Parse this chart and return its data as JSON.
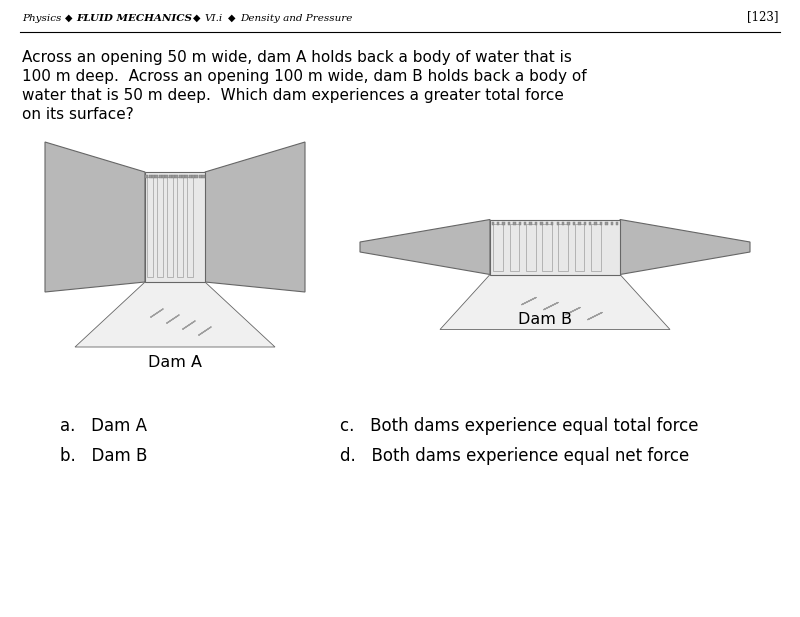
{
  "bg_color": "#ffffff",
  "header_italic": "Physics",
  "header_bullet1": "◆",
  "header_mechanics": "FLUID MECHANICS",
  "header_bullet2": "◆",
  "header_vi": "VI.i",
  "header_bullet3": "◆",
  "header_density": "Density and Pressure",
  "page_number": "[123]",
  "question_lines": [
    "Across an opening 50 m wide, dam A holds back a body of water that is",
    "100 m deep.  Across an opening 100 m wide, dam B holds back a body of",
    "water that is 50 m deep.  Which dam experiences a greater total force",
    "on its surface?"
  ],
  "dam_a_label": "Dam A",
  "dam_b_label": "Dam B",
  "answer_a": "a.   Dam A",
  "answer_b": "b.   Dam B",
  "answer_c": "c.   Both dams experience equal total force",
  "answer_d": "d.   Both dams experience equal net force",
  "gray_wing": "#b8b8b8",
  "gray_outline": "#666666",
  "dam_face_fill": "#e8e8e8",
  "dam_panel_fill": "#d8d8d8",
  "dam_panel_dark": "#aaaaaa",
  "bolt_color": "#888888",
  "flow_color": "#888888"
}
